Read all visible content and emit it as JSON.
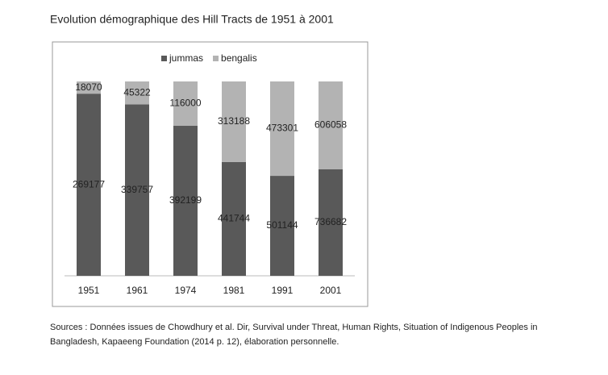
{
  "chart_data": {
    "type": "bar",
    "stacked": "percent",
    "title": "Evolution démographique des Hill Tracts de 1951 à 2001",
    "categories": [
      "1951",
      "1961",
      "1974",
      "1981",
      "1991",
      "2001"
    ],
    "series": [
      {
        "name": "jummas",
        "color": "#595959",
        "values": [
          269177,
          339757,
          392199,
          441744,
          501144,
          736682
        ]
      },
      {
        "name": "bengalis",
        "color": "#b3b3b3",
        "values": [
          18070,
          45322,
          116000,
          313188,
          473301,
          606058
        ]
      }
    ],
    "legend": "top",
    "source_lines": [
      "Sources :  Données issues de Chowdhury et al. Dir, Survival under Threat, Human Rights, Situation of Indigenous Peoples in",
      "Bangladesh, Kapaeeng Foundation  (2014 p. 12),  élaboration personnelle."
    ]
  }
}
